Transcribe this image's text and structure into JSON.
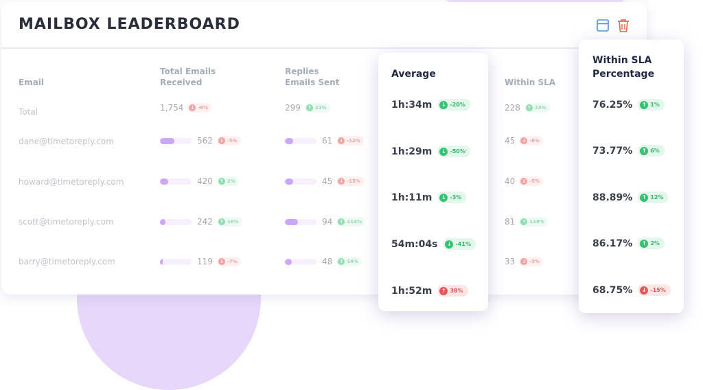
{
  "card": {
    "title": "MAILBOX LEADERBOARD"
  },
  "icons": {
    "layout": "layout-icon",
    "trash": "trash-icon"
  },
  "colors": {
    "accent": "#a361f1",
    "up": "#35c272",
    "down": "#e65858"
  },
  "headers": {
    "email": "Email",
    "received": "Total Emails Received",
    "sent": "Replies Emails Sent",
    "average": "Average",
    "within": "Within SLA",
    "sla_pct": "Within SLA Percentage"
  },
  "total": {
    "label": "Total",
    "received": {
      "count": "1,754",
      "change": "-6%",
      "dir": "down"
    },
    "sent": {
      "count": "299",
      "change": "21%",
      "dir": "up"
    },
    "average": {
      "value": "1h:34m",
      "change": "-20%",
      "dir": "up"
    },
    "within": {
      "count": "228",
      "change": "23%",
      "dir": "up"
    },
    "sla_pct": {
      "value": "76.25%",
      "change": "1%",
      "dir": "up"
    }
  },
  "rows": [
    {
      "email": "dane@timetoreply.com",
      "received": {
        "count": "562",
        "change": "-5%",
        "dir": "down",
        "fill": 0.45
      },
      "sent": {
        "count": "61",
        "change": "-12%",
        "dir": "down",
        "fill": 0.25
      },
      "average": {
        "value": "1h:29m",
        "change": "-50%",
        "dir": "up"
      },
      "within": {
        "count": "45",
        "change": "-6%",
        "dir": "down"
      },
      "sla_pct": {
        "value": "73.77%",
        "change": "6%",
        "dir": "up"
      }
    },
    {
      "email": "howard@timetoreply.com",
      "received": {
        "count": "420",
        "change": "2%",
        "dir": "up",
        "fill": 0.26
      },
      "sent": {
        "count": "45",
        "change": "-15%",
        "dir": "down",
        "fill": 0.26
      },
      "average": {
        "value": "1h:11m",
        "change": "-3%",
        "dir": "up"
      },
      "within": {
        "count": "40",
        "change": "-5%",
        "dir": "down"
      },
      "sla_pct": {
        "value": "88.89%",
        "change": "12%",
        "dir": "up"
      }
    },
    {
      "email": "scott@timetoreply.com",
      "received": {
        "count": "242",
        "change": "16%",
        "dir": "up",
        "fill": 0.18
      },
      "sent": {
        "count": "94",
        "change": "114%",
        "dir": "up",
        "fill": 0.42
      },
      "average": {
        "value": "54m:04s",
        "change": "-41%",
        "dir": "up"
      },
      "within": {
        "count": "81",
        "change": "119%",
        "dir": "up"
      },
      "sla_pct": {
        "value": "86.17%",
        "change": "2%",
        "dir": "up"
      }
    },
    {
      "email": "barry@timetoreply.com",
      "received": {
        "count": "119",
        "change": "-7%",
        "dir": "down",
        "fill": 0.08
      },
      "sent": {
        "count": "48",
        "change": "14%",
        "dir": "up",
        "fill": 0.22
      },
      "average": {
        "value": "1h:52m",
        "change": "38%",
        "dir": "down"
      },
      "within": {
        "count": "33",
        "change": "-3%",
        "dir": "down"
      },
      "sla_pct": {
        "value": "68.75%",
        "change": "-15%",
        "dir": "down"
      }
    }
  ]
}
